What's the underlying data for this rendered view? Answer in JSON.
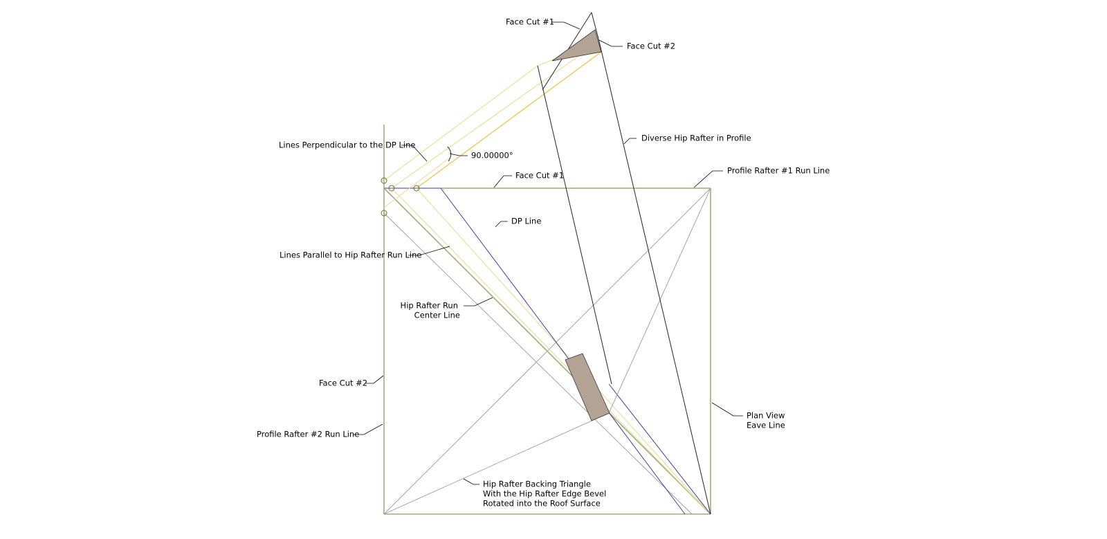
{
  "labels": {
    "face_cut_1_top": "Face Cut #1",
    "face_cut_2_top": "Face Cut #2",
    "diverse_hip": "Diverse Hip Rafter in Profile",
    "profile_rafter_1": "Profile Rafter #1 Run Line",
    "face_cut_1_plan": "Face Cut #1",
    "angle": "90.00000°",
    "lines_perpendicular": "Lines Perpendicular to the DP Line",
    "dp_line": "DP Line",
    "lines_parallel": "Lines Parallel to Hip Rafter Run Line",
    "hip_run_center": [
      "Hip Rafter Run",
      "Center Line"
    ],
    "face_cut_2_plan": "Face Cut #2",
    "profile_rafter_2": "Profile Rafter #2 Run Line",
    "plan_view_eave": [
      "Plan View",
      "Eave Line"
    ],
    "backing_triangle": [
      "Hip Rafter Backing Triangle",
      "With the Hip Rafter Edge Bevel",
      "Rotated into the Roof Surface"
    ]
  }
}
